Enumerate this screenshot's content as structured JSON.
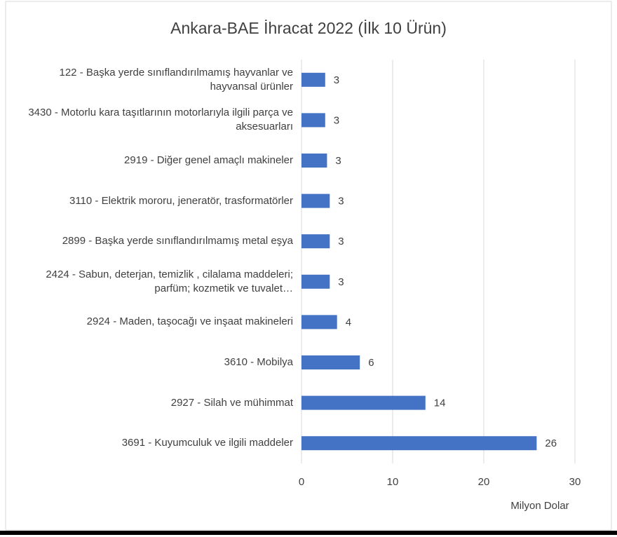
{
  "chart_data": {
    "type": "bar",
    "orientation": "horizontal",
    "title": "Ankara-BAE İhracat 2022 (İlk 10 Ürün)",
    "x_label": "Milyon Dolar",
    "categories": [
      "122 - Başka yerde sınıflandırılmamış hayvanlar ve hayvansal ürünler",
      "3430 - Motorlu kara taşıtlarının motorlarıyla ilgili parça ve aksesuarları",
      "2919 - Diğer genel amaçlı makineler",
      "3110 - Elektrik mororu, jeneratör, trasformatörler",
      "2899 - Başka yerde sınıflandırılmamış metal eşya",
      "2424 - Sabun, deterjan, temizlik , cilalama maddeleri; parfüm; kozmetik ve tuvalet…",
      "2924 - Maden, taşocağı ve inşaat makineleri",
      "3610 - Mobilya",
      "2927 - Silah ve mühimmat",
      "3691 - Kuyumculuk ve ilgili maddeler"
    ],
    "values": [
      2.6,
      2.6,
      2.8,
      3.1,
      3.1,
      3.1,
      3.9,
      6.4,
      13.6,
      25.8
    ],
    "value_labels": [
      "3",
      "3",
      "3",
      "3",
      "3",
      "3",
      "4",
      "6",
      "14",
      "26"
    ],
    "color": "#4472c4",
    "xlim": [
      0,
      30
    ],
    "xticks": [
      0,
      10,
      20,
      30
    ],
    "grid": true
  }
}
